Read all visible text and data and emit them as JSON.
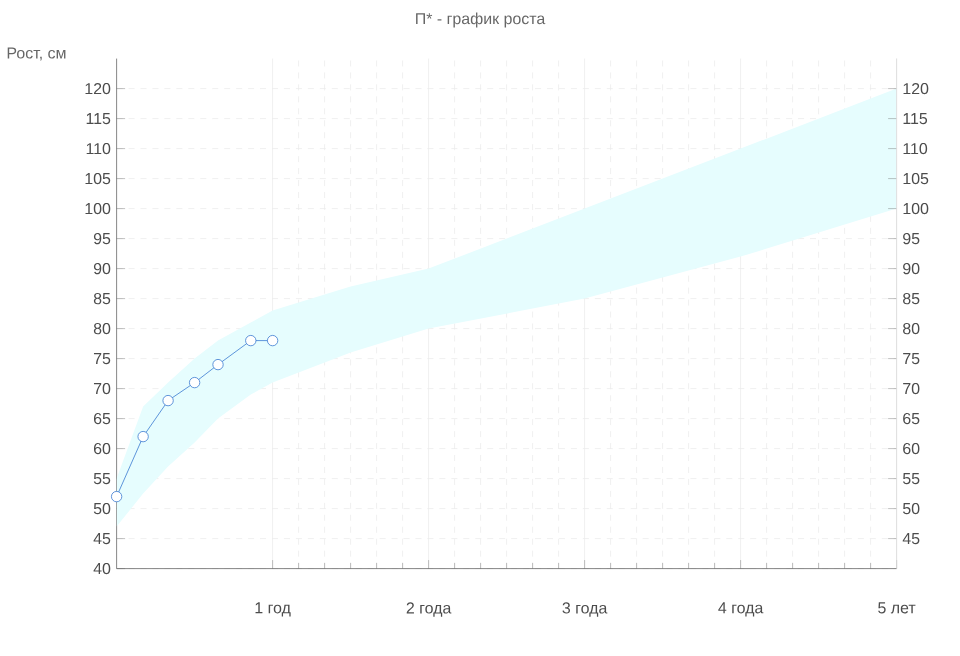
{
  "chart_data": {
    "type": "line",
    "title": "П* - график роста",
    "ylabel": "Рост, см",
    "xlim": [
      0,
      5
    ],
    "ylim": [
      40,
      125
    ],
    "xticks": [
      {
        "value": 1,
        "label": "1 год"
      },
      {
        "value": 2,
        "label": "2 года"
      },
      {
        "value": 3,
        "label": "3 года"
      },
      {
        "value": 4,
        "label": "4 года"
      },
      {
        "value": 5,
        "label": "5 лет"
      }
    ],
    "yticks": [
      40,
      45,
      50,
      55,
      60,
      65,
      70,
      75,
      80,
      85,
      90,
      95,
      100,
      105,
      110,
      115,
      120
    ],
    "y2lim": [
      40,
      125
    ],
    "y2ticks": [
      45,
      50,
      55,
      60,
      65,
      70,
      75,
      80,
      85,
      90,
      95,
      100,
      105,
      110,
      115,
      120
    ],
    "grid": true,
    "marker": "circle",
    "line_style": "solid",
    "series": [
      {
        "color": "#3a7ad0",
        "x": [
          0,
          0.17,
          0.33,
          0.5,
          0.65,
          0.86,
          1,
          1.5,
          2,
          3,
          4,
          5
        ],
        "values": [
          52,
          62,
          68,
          71,
          74,
          78,
          78,
          null,
          null,
          null,
          null,
          null
        ],
        "lower": [
          47,
          52.5,
          57,
          61,
          65,
          69,
          71,
          76,
          80,
          85,
          92,
          100
        ],
        "upper": [
          55,
          67,
          71,
          75,
          78,
          81,
          83,
          87,
          90,
          100,
          110,
          120
        ]
      }
    ]
  }
}
